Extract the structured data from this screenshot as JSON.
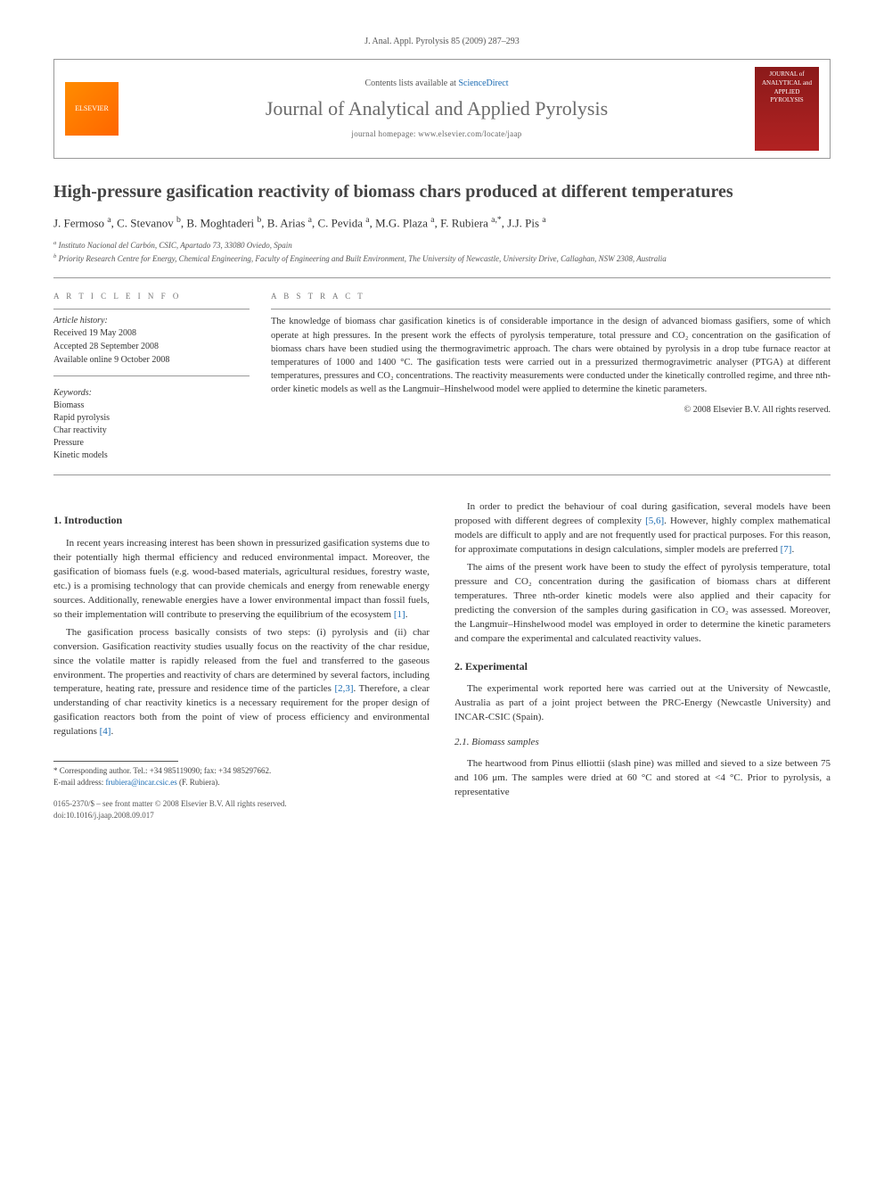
{
  "journal_ref": "J. Anal. Appl. Pyrolysis 85 (2009) 287–293",
  "header": {
    "contents_prefix": "Contents lists available at ",
    "contents_link": "ScienceDirect",
    "journal_name": "Journal of Analytical and Applied Pyrolysis",
    "homepage_prefix": "journal homepage: ",
    "homepage_url": "www.elsevier.com/locate/jaap",
    "logo_left_text": "ELSEVIER",
    "logo_right_text": "JOURNAL of ANALYTICAL and APPLIED PYROLYSIS"
  },
  "title": "High-pressure gasification reactivity of biomass chars produced at different temperatures",
  "authors_html": "J. Fermoso <sup>a</sup>, C. Stevanov <sup>b</sup>, B. Moghtaderi <sup>b</sup>, B. Arias <sup>a</sup>, C. Pevida <sup>a</sup>, M.G. Plaza <sup>a</sup>, F. Rubiera <sup>a,*</sup>, J.J. Pis <sup>a</sup>",
  "affiliations": {
    "a": "Instituto Nacional del Carbón, CSIC, Apartado 73, 33080 Oviedo, Spain",
    "b": "Priority Research Centre for Energy, Chemical Engineering, Faculty of Engineering and Built Environment, The University of Newcastle, University Drive, Callaghan, NSW 2308, Australia"
  },
  "article_info": {
    "label": "A R T I C L E   I N F O",
    "history_label": "Article history:",
    "received": "Received 19 May 2008",
    "accepted": "Accepted 28 September 2008",
    "online": "Available online 9 October 2008",
    "keywords_label": "Keywords:",
    "keywords": [
      "Biomass",
      "Rapid pyrolysis",
      "Char reactivity",
      "Pressure",
      "Kinetic models"
    ]
  },
  "abstract": {
    "label": "A B S T R A C T",
    "text": "The knowledge of biomass char gasification kinetics is of considerable importance in the design of advanced biomass gasifiers, some of which operate at high pressures. In the present work the effects of pyrolysis temperature, total pressure and CO₂ concentration on the gasification of biomass chars have been studied using the thermogravimetric approach. The chars were obtained by pyrolysis in a drop tube furnace reactor at temperatures of 1000 and 1400 °C. The gasification tests were carried out in a pressurized thermogravimetric analyser (PTGA) at different temperatures, pressures and CO₂ concentrations. The reactivity measurements were conducted under the kinetically controlled regime, and three nth-order kinetic models as well as the Langmuir–Hinshelwood model were applied to determine the kinetic parameters.",
    "copyright": "© 2008 Elsevier B.V. All rights reserved."
  },
  "sections": {
    "intro_head": "1. Introduction",
    "intro_p1": "In recent years increasing interest has been shown in pressurized gasification systems due to their potentially high thermal efficiency and reduced environmental impact. Moreover, the gasification of biomass fuels (e.g. wood-based materials, agricultural residues, forestry waste, etc.) is a promising technology that can provide chemicals and energy from renewable energy sources. Additionally, renewable energies have a lower environmental impact than fossil fuels, so their implementation will contribute to preserving the equilibrium of the ecosystem ",
    "intro_p1_ref": "[1]",
    "intro_p1_tail": ".",
    "intro_p2": "The gasification process basically consists of two steps: (i) pyrolysis and (ii) char conversion. Gasification reactivity studies usually focus on the reactivity of the char residue, since the volatile matter is rapidly released from the fuel and transferred to the gaseous environment. The properties and reactivity of chars are determined by several factors, including temperature, heating rate, pressure and residence time of the particles ",
    "intro_p2_ref": "[2,3]",
    "intro_p2_mid": ". Therefore, a clear understanding of char reactivity kinetics is a necessary requirement for the proper design of gasification reactors both from the point of view of process efficiency and environmental regulations ",
    "intro_p2_ref2": "[4]",
    "intro_p2_tail": ".",
    "intro_p3a": "In order to predict the behaviour of coal during gasification, several models have been proposed with different degrees of complexity ",
    "intro_p3a_ref": "[5,6]",
    "intro_p3a_mid": ". However, highly complex mathematical models are difficult to apply and are not frequently used for practical purposes. For this reason, for approximate computations in design calculations, simpler models are preferred ",
    "intro_p3a_ref2": "[7]",
    "intro_p3a_tail": ".",
    "intro_p4": "The aims of the present work have been to study the effect of pyrolysis temperature, total pressure and CO₂ concentration during the gasification of biomass chars at different temperatures. Three nth-order kinetic models were also applied and their capacity for predicting the conversion of the samples during gasification in CO₂ was assessed. Moreover, the Langmuir–Hinshelwood model was employed in order to determine the kinetic parameters and compare the experimental and calculated reactivity values.",
    "exp_head": "2. Experimental",
    "exp_p1": "The experimental work reported here was carried out at the University of Newcastle, Australia as part of a joint project between the PRC-Energy (Newcastle University) and INCAR-CSIC (Spain).",
    "samples_head": "2.1. Biomass samples",
    "samples_p1": "The heartwood from Pinus elliottii (slash pine) was milled and sieved to a size between 75 and 106 μm. The samples were dried at 60 °C and stored at <4 °C. Prior to pyrolysis, a representative"
  },
  "footnote": {
    "corr": "* Corresponding author. Tel.: +34 985119090; fax: +34 985297662.",
    "email_label": "E-mail address: ",
    "email": "frubiera@incar.csic.es",
    "email_suffix": " (F. Rubiera)."
  },
  "footer": {
    "line1": "0165-2370/$ – see front matter © 2008 Elsevier B.V. All rights reserved.",
    "line2": "doi:10.1016/j.jaap.2008.09.017"
  },
  "colors": {
    "link": "#1a6bb3",
    "text": "#333333",
    "muted": "#666666",
    "rule": "#999999"
  }
}
